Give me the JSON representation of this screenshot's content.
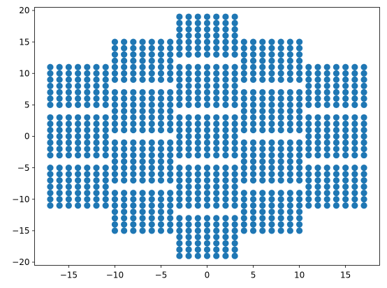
{
  "chart_data": {
    "type": "scatter",
    "title": "",
    "xlabel": "",
    "ylabel": "",
    "xlim": [
      -18.7,
      18.7
    ],
    "ylim": [
      -20.5,
      20.5
    ],
    "grid": false,
    "legend": "none",
    "colors": {
      "marker": "#1f77b4",
      "axes": "#000000",
      "background": "#ffffff"
    },
    "x_ticks": [
      -15,
      -10,
      -5,
      0,
      5,
      10,
      15
    ],
    "x_tick_labels": [
      "−15",
      "−10",
      "−5",
      "0",
      "5",
      "10",
      "15"
    ],
    "y_ticks": [
      -20,
      -15,
      -10,
      -5,
      0,
      5,
      10,
      15,
      20
    ],
    "y_tick_labels": [
      "−20",
      "−15",
      "−10",
      "−5",
      "0",
      "5",
      "10",
      "15",
      "20"
    ],
    "point_spacing": 1.0,
    "blocks": [
      {
        "x": [
          -17,
          -11
        ],
        "y": [
          5,
          11
        ]
      },
      {
        "x": [
          -17,
          -11
        ],
        "y": [
          -3,
          3
        ]
      },
      {
        "x": [
          -17,
          -11
        ],
        "y": [
          -11,
          -5
        ]
      },
      {
        "x": [
          11,
          17
        ],
        "y": [
          5,
          11
        ]
      },
      {
        "x": [
          11,
          17
        ],
        "y": [
          -3,
          3
        ]
      },
      {
        "x": [
          11,
          17
        ],
        "y": [
          -11,
          -5
        ]
      },
      {
        "x": [
          -10,
          -4
        ],
        "y": [
          9,
          15
        ]
      },
      {
        "x": [
          -10,
          -4
        ],
        "y": [
          1,
          7
        ]
      },
      {
        "x": [
          -10,
          -4
        ],
        "y": [
          -7,
          -1
        ]
      },
      {
        "x": [
          -10,
          -4
        ],
        "y": [
          -15,
          -9
        ]
      },
      {
        "x": [
          4,
          10
        ],
        "y": [
          9,
          15
        ]
      },
      {
        "x": [
          4,
          10
        ],
        "y": [
          1,
          7
        ]
      },
      {
        "x": [
          4,
          10
        ],
        "y": [
          -7,
          -1
        ]
      },
      {
        "x": [
          4,
          10
        ],
        "y": [
          -15,
          -9
        ]
      },
      {
        "x": [
          -3,
          3
        ],
        "y": [
          13,
          19
        ]
      },
      {
        "x": [
          -3,
          3
        ],
        "y": [
          5,
          11
        ]
      },
      {
        "x": [
          -3,
          3
        ],
        "y": [
          -3,
          3
        ]
      },
      {
        "x": [
          -3,
          3
        ],
        "y": [
          -11,
          -5
        ]
      },
      {
        "x": [
          -3,
          3
        ],
        "y": [
          -19,
          -13
        ]
      }
    ]
  }
}
